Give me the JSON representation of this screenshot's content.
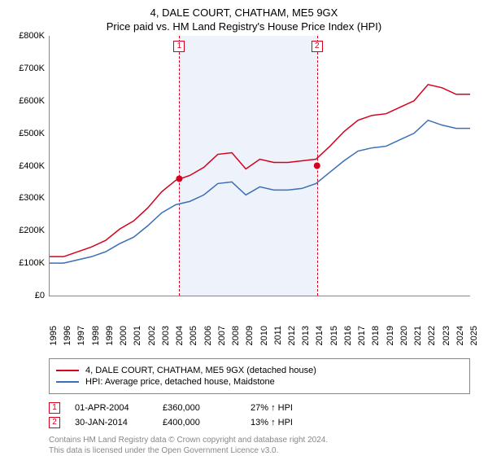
{
  "title_line1": "4, DALE COURT, CHATHAM, ME5 9GX",
  "title_line2": "Price paid vs. HM Land Registry's House Price Index (HPI)",
  "chart": {
    "type": "line",
    "background_color": "#ffffff",
    "shaded_region_color": "#eef2fb",
    "axis_color": "#888888",
    "x": {
      "min": 1995,
      "max": 2025,
      "tick_step": 1,
      "label_fontsize": 11,
      "rotation": -90
    },
    "y": {
      "min": 0,
      "max": 800000,
      "tick_step": 100000,
      "labels": [
        "£0",
        "£100K",
        "£200K",
        "£300K",
        "£400K",
        "£500K",
        "£600K",
        "£700K",
        "£800K"
      ],
      "label_fontsize": 11
    },
    "shaded_region": {
      "x_start": 2004.25,
      "x_end": 2014.08
    },
    "series": [
      {
        "id": "property",
        "label": "4, DALE COURT, CHATHAM, ME5 9GX (detached house)",
        "color": "#d6001c",
        "line_width": 1.5,
        "data": [
          [
            1995,
            120000
          ],
          [
            1996,
            120000
          ],
          [
            1997,
            135000
          ],
          [
            1998,
            150000
          ],
          [
            1999,
            170000
          ],
          [
            2000,
            205000
          ],
          [
            2001,
            230000
          ],
          [
            2002,
            270000
          ],
          [
            2003,
            320000
          ],
          [
            2004,
            355000
          ],
          [
            2005,
            370000
          ],
          [
            2006,
            395000
          ],
          [
            2007,
            435000
          ],
          [
            2008,
            440000
          ],
          [
            2009,
            390000
          ],
          [
            2010,
            420000
          ],
          [
            2011,
            410000
          ],
          [
            2012,
            410000
          ],
          [
            2013,
            415000
          ],
          [
            2014,
            420000
          ],
          [
            2015,
            460000
          ],
          [
            2016,
            505000
          ],
          [
            2017,
            540000
          ],
          [
            2018,
            555000
          ],
          [
            2019,
            560000
          ],
          [
            2020,
            580000
          ],
          [
            2021,
            600000
          ],
          [
            2022,
            650000
          ],
          [
            2023,
            640000
          ],
          [
            2024,
            620000
          ],
          [
            2025,
            620000
          ]
        ]
      },
      {
        "id": "hpi",
        "label": "HPI: Average price, detached house, Maidstone",
        "color": "#3b6fb6",
        "line_width": 1.5,
        "data": [
          [
            1995,
            100000
          ],
          [
            1996,
            100000
          ],
          [
            1997,
            110000
          ],
          [
            1998,
            120000
          ],
          [
            1999,
            135000
          ],
          [
            2000,
            160000
          ],
          [
            2001,
            180000
          ],
          [
            2002,
            215000
          ],
          [
            2003,
            255000
          ],
          [
            2004,
            280000
          ],
          [
            2005,
            290000
          ],
          [
            2006,
            310000
          ],
          [
            2007,
            345000
          ],
          [
            2008,
            350000
          ],
          [
            2009,
            310000
          ],
          [
            2010,
            335000
          ],
          [
            2011,
            325000
          ],
          [
            2012,
            325000
          ],
          [
            2013,
            330000
          ],
          [
            2014,
            345000
          ],
          [
            2015,
            380000
          ],
          [
            2016,
            415000
          ],
          [
            2017,
            445000
          ],
          [
            2018,
            455000
          ],
          [
            2019,
            460000
          ],
          [
            2020,
            480000
          ],
          [
            2021,
            500000
          ],
          [
            2022,
            540000
          ],
          [
            2023,
            525000
          ],
          [
            2024,
            515000
          ],
          [
            2025,
            515000
          ]
        ]
      }
    ],
    "sale_markers": [
      {
        "n": "1",
        "x": 2004.25,
        "y": 360000,
        "date": "01-APR-2004",
        "price": "£360,000",
        "pct": "27% ↑ HPI",
        "color": "#d6001c"
      },
      {
        "n": "2",
        "x": 2014.08,
        "y": 400000,
        "date": "30-JAN-2014",
        "price": "£400,000",
        "pct": "13% ↑ HPI",
        "color": "#d6001c"
      }
    ]
  },
  "attribution_line1": "Contains HM Land Registry data © Crown copyright and database right 2024.",
  "attribution_line2": "This data is licensed under the Open Government Licence v3.0."
}
